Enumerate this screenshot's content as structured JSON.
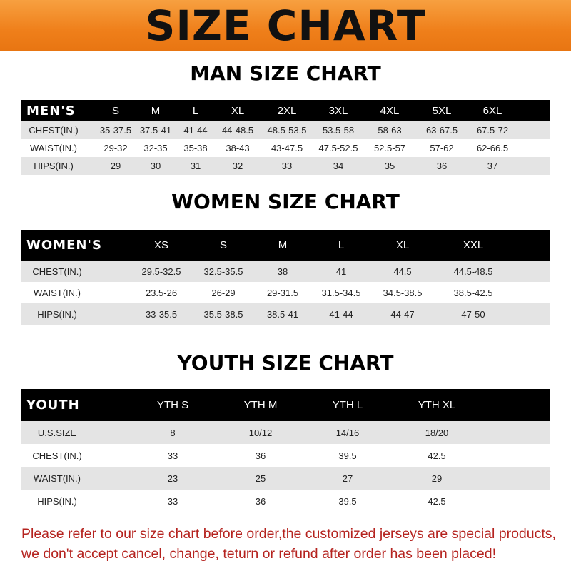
{
  "banner": {
    "title": "SIZE CHART",
    "color": "#ef7f1a"
  },
  "men": {
    "title": "MAN SIZE CHART",
    "header": [
      "MEN'S",
      "S",
      "M",
      "L",
      "XL",
      "2XL",
      "3XL",
      "4XL",
      "5XL",
      "6XL"
    ],
    "rows": [
      [
        "CHEST(IN.)",
        "35-37.5",
        "37.5-41",
        "41-44",
        "44-48.5",
        "48.5-53.5",
        "53.5-58",
        "58-63",
        "63-67.5",
        "67.5-72"
      ],
      [
        "WAIST(IN.)",
        "29-32",
        "32-35",
        "35-38",
        "38-43",
        "43-47.5",
        "47.5-52.5",
        "52.5-57",
        "57-62",
        "62-66.5"
      ],
      [
        "HIPS(IN.)",
        "29",
        "30",
        "31",
        "32",
        "33",
        "34",
        "35",
        "36",
        "37"
      ]
    ]
  },
  "women": {
    "title": "WOMEN SIZE CHART",
    "header": [
      "WOMEN'S",
      "XS",
      "S",
      "M",
      "L",
      "XL",
      "XXL"
    ],
    "rows": [
      [
        "CHEST(IN.)",
        "29.5-32.5",
        "32.5-35.5",
        "38",
        "41",
        "44.5",
        "44.5-48.5"
      ],
      [
        "WAIST(IN.)",
        "23.5-26",
        "26-29",
        "29-31.5",
        "31.5-34.5",
        "34.5-38.5",
        "38.5-42.5"
      ],
      [
        "HIPS(IN.)",
        "33-35.5",
        "35.5-38.5",
        "38.5-41",
        "41-44",
        "44-47",
        "47-50"
      ]
    ]
  },
  "youth": {
    "title": "YOUTH SIZE CHART",
    "header": [
      "YOUTH",
      "YTH S",
      "YTH M",
      "YTH L",
      "YTH XL"
    ],
    "rows": [
      [
        "U.S.SIZE",
        "8",
        "10/12",
        "14/16",
        "18/20"
      ],
      [
        "CHEST(IN.)",
        "33",
        "36",
        "39.5",
        "42.5"
      ],
      [
        "WAIST(IN.)",
        "23",
        "25",
        "27",
        "29"
      ],
      [
        "HIPS(IN.)",
        "33",
        "36",
        "39.5",
        "42.5"
      ]
    ]
  },
  "note": {
    "line1": "Please refer to our size chart before order,the customized jerseys are special products,",
    "line2": "we don't accept cancel, change, teturn or refund after order has been placed!",
    "color": "#b5231f"
  }
}
